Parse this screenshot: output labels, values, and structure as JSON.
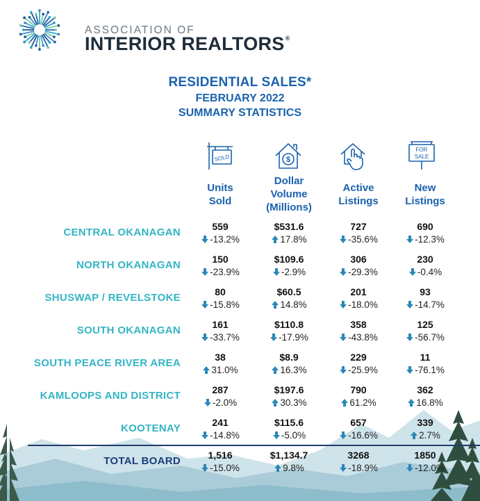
{
  "header": {
    "logo_line1": "ASSOCIATION OF",
    "logo_line2": "INTERIOR REALTORS",
    "registered_mark": "®"
  },
  "title": {
    "line1": "RESIDENTIAL SALES*",
    "line2": "FEBRUARY 2022",
    "line3": "SUMMARY STATISTICS"
  },
  "columns": [
    {
      "icon": "sold-sign-icon",
      "line1": "Units",
      "line2": "Sold",
      "line3": ""
    },
    {
      "icon": "dollar-house-icon",
      "line1": "Dollar",
      "line2": "Volume",
      "line3": "(Millions)"
    },
    {
      "icon": "house-touch-icon",
      "line1": "Active",
      "line2": "Listings",
      "line3": ""
    },
    {
      "icon": "for-sale-sign-icon",
      "line1": "New",
      "line2": "Listings",
      "line3": ""
    }
  ],
  "icon_text": {
    "sold": "SOLD",
    "for_sale_1": "FOR",
    "for_sale_2": "SALE",
    "dollar": "$"
  },
  "rows": [
    {
      "label": "CENTRAL OKANAGAN",
      "cells": [
        {
          "value": "559",
          "change": "-13.2%",
          "dir": "down"
        },
        {
          "value": "$531.6",
          "change": "17.8%",
          "dir": "up"
        },
        {
          "value": "727",
          "change": "-35.6%",
          "dir": "down"
        },
        {
          "value": "690",
          "change": "-12.3%",
          "dir": "down"
        }
      ]
    },
    {
      "label": "NORTH OKANAGAN",
      "cells": [
        {
          "value": "150",
          "change": "-23.9%",
          "dir": "down"
        },
        {
          "value": "$109.6",
          "change": "-2.9%",
          "dir": "down"
        },
        {
          "value": "306",
          "change": "-29.3%",
          "dir": "down"
        },
        {
          "value": "230",
          "change": "-0.4%",
          "dir": "down"
        }
      ]
    },
    {
      "label": "SHUSWAP / REVELSTOKE",
      "cells": [
        {
          "value": "80",
          "change": "-15.8%",
          "dir": "down"
        },
        {
          "value": "$60.5",
          "change": "14.8%",
          "dir": "up"
        },
        {
          "value": "201",
          "change": "-18.0%",
          "dir": "down"
        },
        {
          "value": "93",
          "change": "-14.7%",
          "dir": "down"
        }
      ]
    },
    {
      "label": "SOUTH OKANAGAN",
      "cells": [
        {
          "value": "161",
          "change": "-33.7%",
          "dir": "down"
        },
        {
          "value": "$110.8",
          "change": "-17.9%",
          "dir": "down"
        },
        {
          "value": "358",
          "change": "-43.8%",
          "dir": "down"
        },
        {
          "value": "125",
          "change": "-56.7%",
          "dir": "down"
        }
      ]
    },
    {
      "label": "SOUTH PEACE RIVER AREA",
      "cells": [
        {
          "value": "38",
          "change": "31.0%",
          "dir": "up"
        },
        {
          "value": "$8.9",
          "change": "16.3%",
          "dir": "up"
        },
        {
          "value": "229",
          "change": "-25.9%",
          "dir": "down"
        },
        {
          "value": "11",
          "change": "-76.1%",
          "dir": "down"
        }
      ]
    },
    {
      "label": "KAMLOOPS AND DISTRICT",
      "cells": [
        {
          "value": "287",
          "change": "-2.0%",
          "dir": "down"
        },
        {
          "value": "$197.6",
          "change": "30.3%",
          "dir": "up"
        },
        {
          "value": "790",
          "change": "61.2%",
          "dir": "up"
        },
        {
          "value": "362",
          "change": "16.8%",
          "dir": "up"
        }
      ]
    },
    {
      "label": "KOOTENAY",
      "cells": [
        {
          "value": "241",
          "change": "-14.8%",
          "dir": "down"
        },
        {
          "value": "$115.6",
          "change": "-5.0%",
          "dir": "down"
        },
        {
          "value": "657",
          "change": "-16.6%",
          "dir": "down"
        },
        {
          "value": "339",
          "change": "2.7%",
          "dir": "up"
        }
      ]
    },
    {
      "label": "TOTAL BOARD",
      "total": true,
      "cells": [
        {
          "value": "1,516",
          "change": "-15.0%",
          "dir": "down"
        },
        {
          "value": "$1,134.7",
          "change": "9.8%",
          "dir": "up"
        },
        {
          "value": "3268",
          "change": "-18.9%",
          "dir": "down"
        },
        {
          "value": "1850",
          "change": "-12.0%",
          "dir": "down"
        }
      ]
    }
  ],
  "colors": {
    "label_teal": "#33b5c4",
    "header_blue": "#1a62ae",
    "total_navy": "#1a3d7e",
    "arrow_teal": "#2b87b8"
  }
}
